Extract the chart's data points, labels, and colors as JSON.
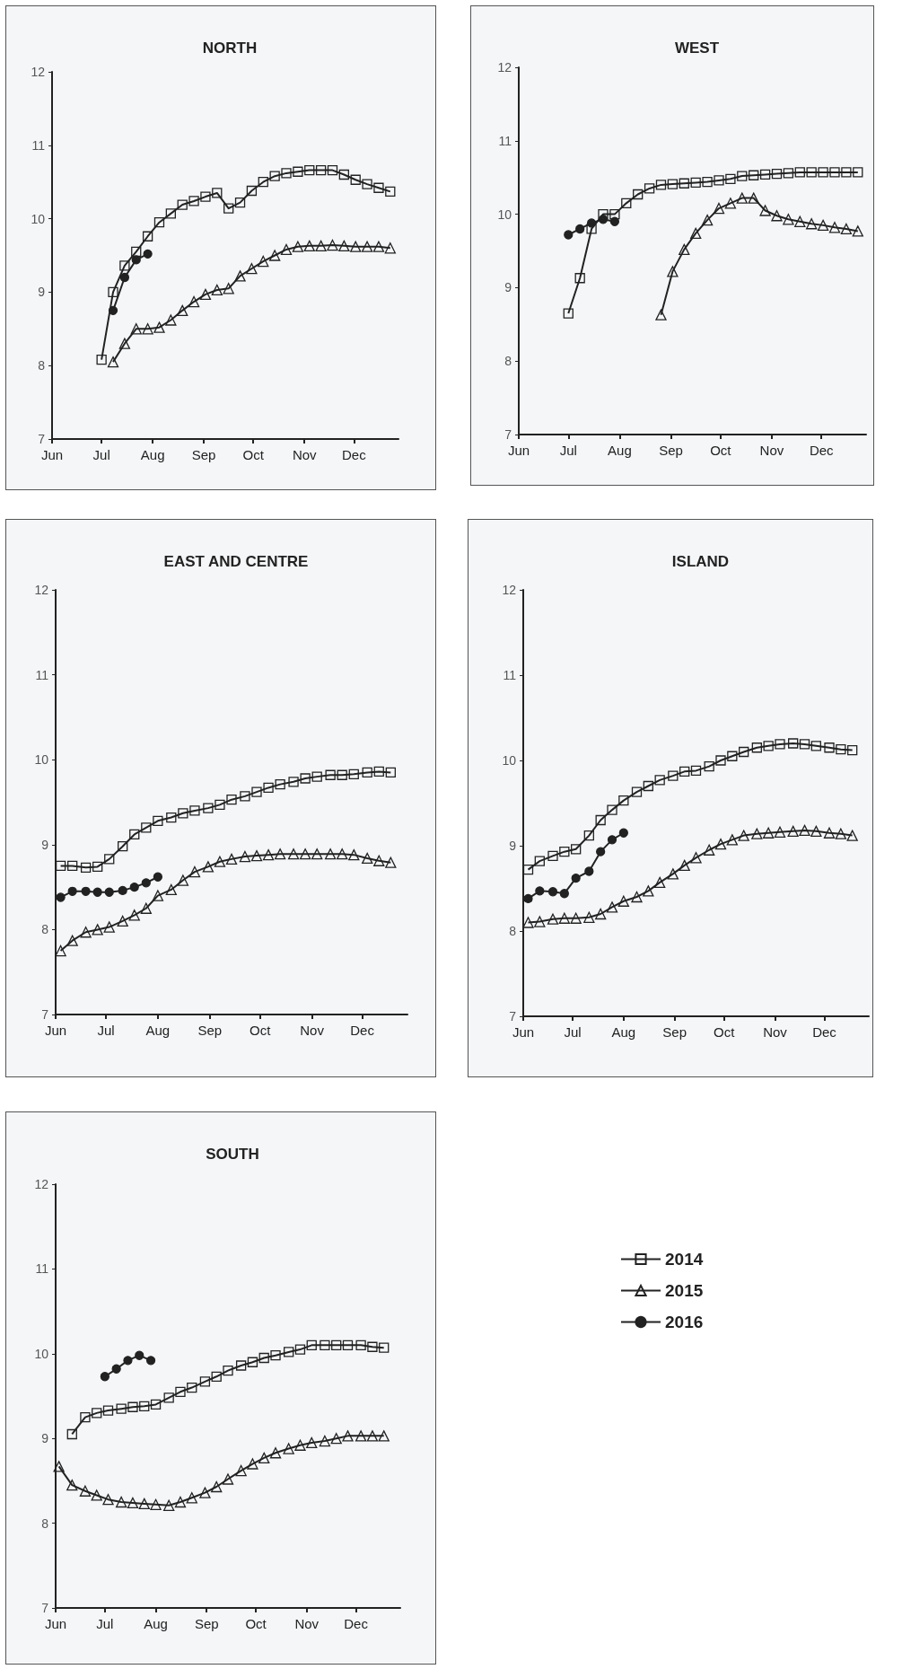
{
  "chart_data": [
    {
      "type": "line",
      "title": "NORTH",
      "xlim": [
        "--06-01",
        "--12-28"
      ],
      "ylim": [
        7,
        12
      ],
      "yticks": [
        7,
        8,
        9,
        10,
        11,
        12
      ],
      "xticks": [
        {
          "value": "--06-01",
          "label": "Jun"
        },
        {
          "value": "--07-01",
          "label": "Jul"
        },
        {
          "value": "--08-01",
          "label": "Aug"
        },
        {
          "value": "--09-01",
          "label": "Sep"
        },
        {
          "value": "--10-01",
          "label": "Oct"
        },
        {
          "value": "--11-01",
          "label": "Nov"
        },
        {
          "value": "--12-01",
          "label": "Dec"
        }
      ],
      "series": [
        {
          "color": "#222222",
          "marker": "square",
          "x": [
            "--07-01",
            "--07-08",
            "--07-15",
            "--07-22",
            "--07-29",
            "--08-05",
            "--08-12",
            "--08-19",
            "--08-26",
            "--09-02",
            "--09-09",
            "--09-16",
            "--09-23",
            "--09-30",
            "--10-07",
            "--10-14",
            "--10-21",
            "--10-28",
            "--11-04",
            "--11-11",
            "--11-18",
            "--11-25",
            "--12-02",
            "--12-09",
            "--12-16",
            "--12-23"
          ],
          "values": [
            8.08,
            9.0,
            9.36,
            9.55,
            9.76,
            9.95,
            10.07,
            10.19,
            10.24,
            10.3,
            10.35,
            10.14,
            10.22,
            10.38,
            10.5,
            10.58,
            10.62,
            10.64,
            10.66,
            10.66,
            10.66,
            10.6,
            10.53,
            10.47,
            10.42,
            10.37
          ]
        },
        {
          "color": "#222222",
          "marker": "triangle",
          "x": [
            "--07-08",
            "--07-15",
            "--07-22",
            "--07-29",
            "--08-05",
            "--08-12",
            "--08-19",
            "--08-26",
            "--09-02",
            "--09-09",
            "--09-16",
            "--09-23",
            "--09-30",
            "--10-07",
            "--10-14",
            "--10-21",
            "--10-28",
            "--11-04",
            "--11-11",
            "--11-18",
            "--11-25",
            "--12-02",
            "--12-09",
            "--12-16",
            "--12-23"
          ],
          "values": [
            8.05,
            8.3,
            8.5,
            8.5,
            8.52,
            8.62,
            8.75,
            8.87,
            8.97,
            9.03,
            9.05,
            9.22,
            9.32,
            9.42,
            9.5,
            9.58,
            9.62,
            9.63,
            9.63,
            9.64,
            9.63,
            9.62,
            9.62,
            9.62,
            9.6
          ]
        },
        {
          "color": "#222222",
          "marker": "circle",
          "x": [
            "--07-08",
            "--07-15",
            "--07-22",
            "--07-29"
          ],
          "values": [
            8.75,
            9.2,
            9.44,
            9.52
          ]
        }
      ]
    },
    {
      "type": "line",
      "title": "WEST",
      "xlim": [
        "--06-01",
        "--12-28"
      ],
      "ylim": [
        7,
        12
      ],
      "yticks": [
        7,
        8,
        9,
        10,
        11,
        12
      ],
      "xticks": [
        {
          "value": "--06-01",
          "label": "Jun"
        },
        {
          "value": "--07-01",
          "label": "Jul"
        },
        {
          "value": "--08-01",
          "label": "Aug"
        },
        {
          "value": "--09-01",
          "label": "Sep"
        },
        {
          "value": "--10-01",
          "label": "Oct"
        },
        {
          "value": "--11-01",
          "label": "Nov"
        },
        {
          "value": "--12-01",
          "label": "Dec"
        }
      ],
      "series": [
        {
          "color": "#222222",
          "marker": "square",
          "x": [
            "--07-01",
            "--07-08",
            "--07-15",
            "--07-22",
            "--07-29",
            "--08-05",
            "--08-12",
            "--08-19",
            "--08-26",
            "--09-02",
            "--09-09",
            "--09-16",
            "--09-23",
            "--09-30",
            "--10-07",
            "--10-14",
            "--10-21",
            "--10-28",
            "--11-04",
            "--11-11",
            "--11-18",
            "--11-25",
            "--12-02",
            "--12-09",
            "--12-16",
            "--12-23"
          ],
          "values": [
            8.65,
            9.13,
            9.8,
            10.0,
            10.0,
            10.15,
            10.27,
            10.35,
            10.4,
            10.41,
            10.42,
            10.43,
            10.44,
            10.46,
            10.48,
            10.52,
            10.53,
            10.54,
            10.55,
            10.56,
            10.57,
            10.57,
            10.57,
            10.57,
            10.57,
            10.57
          ]
        },
        {
          "color": "#222222",
          "marker": "triangle",
          "x": [
            "--08-26",
            "--09-02",
            "--09-09",
            "--09-16",
            "--09-23",
            "--09-30",
            "--10-07",
            "--10-14",
            "--10-21",
            "--10-28",
            "--11-04",
            "--11-11",
            "--11-18",
            "--11-25",
            "--12-02",
            "--12-09",
            "--12-16",
            "--12-23"
          ],
          "values": [
            8.63,
            9.22,
            9.52,
            9.74,
            9.92,
            10.08,
            10.15,
            10.22,
            10.22,
            10.05,
            9.98,
            9.93,
            9.9,
            9.87,
            9.85,
            9.82,
            9.8,
            9.77
          ]
        },
        {
          "color": "#222222",
          "marker": "circle",
          "x": [
            "--07-01",
            "--07-08",
            "--07-15",
            "--07-22",
            "--07-29"
          ],
          "values": [
            9.72,
            9.8,
            9.88,
            9.93,
            9.9
          ]
        }
      ]
    },
    {
      "type": "line",
      "title": "EAST AND CENTRE",
      "xlim": [
        "--06-01",
        "--12-28"
      ],
      "ylim": [
        7,
        12
      ],
      "yticks": [
        7,
        8,
        9,
        10,
        11,
        12
      ],
      "xticks": [
        {
          "value": "--06-01",
          "label": "Jun"
        },
        {
          "value": "--07-01",
          "label": "Jul"
        },
        {
          "value": "--08-01",
          "label": "Aug"
        },
        {
          "value": "--09-01",
          "label": "Sep"
        },
        {
          "value": "--10-01",
          "label": "Oct"
        },
        {
          "value": "--11-01",
          "label": "Nov"
        },
        {
          "value": "--12-01",
          "label": "Dec"
        }
      ],
      "series": [
        {
          "color": "#222222",
          "marker": "square",
          "x": [
            "--06-04",
            "--06-11",
            "--06-19",
            "--06-26",
            "--07-03",
            "--07-11",
            "--07-18",
            "--07-25",
            "--08-01",
            "--08-09",
            "--08-16",
            "--08-23",
            "--08-31",
            "--09-07",
            "--09-14",
            "--09-22",
            "--09-29",
            "--10-06",
            "--10-13",
            "--10-21",
            "--10-28",
            "--11-04",
            "--11-12",
            "--11-19",
            "--11-26",
            "--12-04",
            "--12-11",
            "--12-18"
          ],
          "values": [
            8.75,
            8.75,
            8.73,
            8.74,
            8.83,
            8.98,
            9.12,
            9.2,
            9.28,
            9.32,
            9.37,
            9.4,
            9.43,
            9.47,
            9.53,
            9.57,
            9.62,
            9.67,
            9.71,
            9.74,
            9.78,
            9.8,
            9.82,
            9.82,
            9.83,
            9.85,
            9.86,
            9.85
          ]
        },
        {
          "color": "#222222",
          "marker": "triangle",
          "x": [
            "--06-04",
            "--06-11",
            "--06-19",
            "--06-26",
            "--07-03",
            "--07-11",
            "--07-18",
            "--07-25",
            "--08-01",
            "--08-09",
            "--08-16",
            "--08-23",
            "--08-31",
            "--09-07",
            "--09-14",
            "--09-22",
            "--09-29",
            "--10-06",
            "--10-13",
            "--10-21",
            "--10-28",
            "--11-04",
            "--11-12",
            "--11-19",
            "--11-26",
            "--12-04",
            "--12-11",
            "--12-18"
          ],
          "values": [
            7.75,
            7.87,
            7.97,
            8.0,
            8.03,
            8.1,
            8.17,
            8.25,
            8.4,
            8.47,
            8.58,
            8.68,
            8.74,
            8.8,
            8.83,
            8.86,
            8.87,
            8.88,
            8.89,
            8.89,
            8.89,
            8.89,
            8.89,
            8.89,
            8.88,
            8.84,
            8.81,
            8.79
          ]
        },
        {
          "color": "#222222",
          "marker": "circle",
          "x": [
            "--06-04",
            "--06-11",
            "--06-19",
            "--06-26",
            "--07-03",
            "--07-11",
            "--07-18",
            "--07-25",
            "--08-01"
          ],
          "values": [
            8.38,
            8.45,
            8.45,
            8.44,
            8.44,
            8.46,
            8.5,
            8.55,
            8.62
          ]
        }
      ]
    },
    {
      "type": "line",
      "title": "ISLAND",
      "xlim": [
        "--06-01",
        "--12-28"
      ],
      "ylim": [
        7,
        12
      ],
      "yticks": [
        7,
        8,
        9,
        10,
        11,
        12
      ],
      "xticks": [
        {
          "value": "--06-01",
          "label": "Jun"
        },
        {
          "value": "--07-01",
          "label": "Jul"
        },
        {
          "value": "--08-01",
          "label": "Aug"
        },
        {
          "value": "--09-01",
          "label": "Sep"
        },
        {
          "value": "--10-01",
          "label": "Oct"
        },
        {
          "value": "--11-01",
          "label": "Nov"
        },
        {
          "value": "--12-01",
          "label": "Dec"
        }
      ],
      "series": [
        {
          "color": "#222222",
          "marker": "square",
          "x": [
            "--06-04",
            "--06-11",
            "--06-19",
            "--06-26",
            "--07-03",
            "--07-11",
            "--07-18",
            "--07-25",
            "--08-01",
            "--08-09",
            "--08-16",
            "--08-23",
            "--08-31",
            "--09-07",
            "--09-14",
            "--09-22",
            "--09-29",
            "--10-06",
            "--10-13",
            "--10-21",
            "--10-28",
            "--11-04",
            "--11-12",
            "--11-19",
            "--11-26",
            "--12-04",
            "--12-11",
            "--12-18"
          ],
          "values": [
            8.72,
            8.82,
            8.88,
            8.93,
            8.96,
            9.12,
            9.3,
            9.42,
            9.53,
            9.63,
            9.7,
            9.77,
            9.82,
            9.87,
            9.88,
            9.93,
            10.0,
            10.05,
            10.1,
            10.15,
            10.17,
            10.19,
            10.2,
            10.19,
            10.17,
            10.15,
            10.13,
            10.12
          ]
        },
        {
          "color": "#222222",
          "marker": "triangle",
          "x": [
            "--06-04",
            "--06-11",
            "--06-19",
            "--06-26",
            "--07-03",
            "--07-11",
            "--07-18",
            "--07-25",
            "--08-01",
            "--08-09",
            "--08-16",
            "--08-23",
            "--08-31",
            "--09-07",
            "--09-14",
            "--09-22",
            "--09-29",
            "--10-06",
            "--10-13",
            "--10-21",
            "--10-28",
            "--11-04",
            "--11-12",
            "--11-19",
            "--11-26",
            "--12-04",
            "--12-11",
            "--12-18"
          ],
          "values": [
            8.1,
            8.11,
            8.14,
            8.15,
            8.15,
            8.16,
            8.2,
            8.28,
            8.35,
            8.4,
            8.47,
            8.57,
            8.67,
            8.77,
            8.86,
            8.95,
            9.02,
            9.07,
            9.12,
            9.14,
            9.15,
            9.16,
            9.17,
            9.18,
            9.17,
            9.15,
            9.14,
            9.12
          ]
        },
        {
          "color": "#222222",
          "marker": "circle",
          "x": [
            "--06-04",
            "--06-11",
            "--06-19",
            "--06-26",
            "--07-03",
            "--07-11",
            "--07-18",
            "--07-25",
            "--08-01"
          ],
          "values": [
            8.38,
            8.47,
            8.46,
            8.44,
            8.62,
            8.7,
            8.93,
            9.07,
            9.15
          ]
        }
      ]
    },
    {
      "type": "line",
      "title": "SOUTH",
      "xlim": [
        "--06-01",
        "--12-28"
      ],
      "ylim": [
        7,
        12
      ],
      "yticks": [
        7,
        8,
        9,
        10,
        11,
        12
      ],
      "legend": "right",
      "xticks": [
        {
          "value": "--06-01",
          "label": "Jun"
        },
        {
          "value": "--07-01",
          "label": "Jul"
        },
        {
          "value": "--08-01",
          "label": "Aug"
        },
        {
          "value": "--09-01",
          "label": "Sep"
        },
        {
          "value": "--10-01",
          "label": "Oct"
        },
        {
          "value": "--11-01",
          "label": "Nov"
        },
        {
          "value": "--12-01",
          "label": "Dec"
        }
      ],
      "series": [
        {
          "name": "2014",
          "color": "#222222",
          "marker": "square",
          "x": [
            "--06-11",
            "--06-19",
            "--06-26",
            "--07-03",
            "--07-11",
            "--07-18",
            "--07-25",
            "--08-01",
            "--08-09",
            "--08-16",
            "--08-23",
            "--08-31",
            "--09-07",
            "--09-14",
            "--09-22",
            "--09-29",
            "--10-06",
            "--10-13",
            "--10-21",
            "--10-28",
            "--11-04",
            "--11-12",
            "--11-19",
            "--11-26",
            "--12-04",
            "--12-11",
            "--12-18"
          ],
          "values": [
            9.05,
            9.25,
            9.3,
            9.33,
            9.35,
            9.37,
            9.38,
            9.4,
            9.48,
            9.55,
            9.6,
            9.67,
            9.73,
            9.8,
            9.86,
            9.9,
            9.95,
            9.98,
            10.02,
            10.05,
            10.1,
            10.1,
            10.1,
            10.1,
            10.1,
            10.08,
            10.07
          ]
        },
        {
          "name": "2015",
          "color": "#222222",
          "marker": "triangle",
          "x": [
            "--06-03",
            "--06-11",
            "--06-19",
            "--06-26",
            "--07-03",
            "--07-11",
            "--07-18",
            "--07-25",
            "--08-01",
            "--08-09",
            "--08-16",
            "--08-23",
            "--08-31",
            "--09-07",
            "--09-14",
            "--09-22",
            "--09-29",
            "--10-06",
            "--10-13",
            "--10-21",
            "--10-28",
            "--11-04",
            "--11-12",
            "--11-19",
            "--11-26",
            "--12-04",
            "--12-11",
            "--12-18"
          ],
          "values": [
            8.67,
            8.45,
            8.38,
            8.33,
            8.28,
            8.25,
            8.24,
            8.23,
            8.22,
            8.21,
            8.25,
            8.3,
            8.36,
            8.43,
            8.52,
            8.62,
            8.7,
            8.77,
            8.83,
            8.88,
            8.92,
            8.95,
            8.97,
            9.0,
            9.03,
            9.03,
            9.03,
            9.03
          ]
        },
        {
          "name": "2016",
          "color": "#222222",
          "marker": "circle",
          "x": [
            "--07-01",
            "--07-08",
            "--07-15",
            "--07-22",
            "--07-29"
          ],
          "values": [
            9.73,
            9.82,
            9.92,
            9.98,
            9.92
          ]
        }
      ]
    }
  ]
}
